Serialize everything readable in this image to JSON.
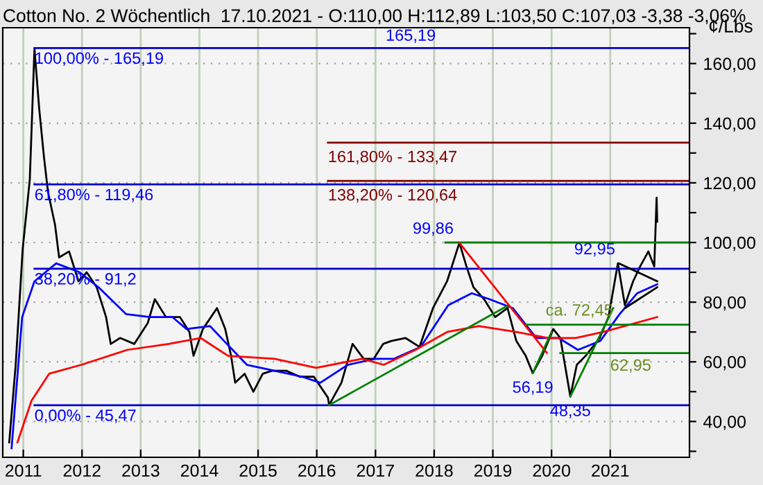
{
  "chart_data": {
    "type": "line",
    "title": "Cotton No. 2 Wöchentlich  17.10.2021 - O:110,00 H:112,89 L:103,50 C:107,03 -3,38 -3,06%",
    "ylabel": "¢/Lbs",
    "xlim": [
      2010.65,
      2022.35
    ],
    "ylim": [
      28,
      172
    ],
    "xticks": [
      2011,
      2012,
      2013,
      2014,
      2015,
      2016,
      2017,
      2018,
      2019,
      2020,
      2021
    ],
    "yticks": [
      {
        "value": 30,
        "label": null
      },
      {
        "value": 40,
        "label": "40,00"
      },
      {
        "value": 50,
        "label": null
      },
      {
        "value": 60,
        "label": "60,00"
      },
      {
        "value": 70,
        "label": null
      },
      {
        "value": 80,
        "label": "80,00"
      },
      {
        "value": 90,
        "label": null
      },
      {
        "value": 100,
        "label": "100,00"
      },
      {
        "value": 110,
        "label": null
      },
      {
        "value": 120,
        "label": "120,00"
      },
      {
        "value": 130,
        "label": null
      },
      {
        "value": 140,
        "label": "140,00"
      },
      {
        "value": 150,
        "label": null
      },
      {
        "value": 160,
        "label": "160,00"
      },
      {
        "value": 170,
        "label": null
      }
    ],
    "grid": true,
    "series": [
      {
        "color": "#000000",
        "x": [
          2010.76,
          2010.87,
          2010.99,
          2011.11,
          2011.19,
          2011.27,
          2011.35,
          2011.42,
          2011.54,
          2011.61,
          2011.78,
          2011.94,
          2012.08,
          2012.25,
          2012.41,
          2012.49,
          2012.65,
          2012.89,
          2013.12,
          2013.24,
          2013.43,
          2013.67,
          2013.83,
          2013.9,
          2014.06,
          2014.3,
          2014.44,
          2014.54,
          2014.61,
          2014.77,
          2014.92,
          2015.08,
          2015.24,
          2015.48,
          2015.71,
          2015.95,
          2016.19,
          2016.21,
          2016.42,
          2016.61,
          2016.8,
          2016.97,
          2017.13,
          2017.27,
          2017.51,
          2017.75,
          2017.98,
          2018.22,
          2018.43,
          2018.55,
          2018.67,
          2018.85,
          2019.04,
          2019.25,
          2019.4,
          2019.56,
          2019.68,
          2019.84,
          2020.03,
          2020.15,
          2020.32,
          2020.43,
          2020.58,
          2020.82,
          2020.97,
          2021.13,
          2021.25,
          2021.39,
          2021.51,
          2021.65,
          2021.75,
          2021.79,
          2021.8
        ],
        "values": [
          33,
          59,
          98,
          121,
          165,
          145,
          129,
          117,
          106,
          95,
          97,
          87,
          90,
          85,
          75,
          66,
          68,
          66,
          73,
          81,
          75,
          75,
          70,
          62,
          71,
          78,
          71,
          62,
          53,
          56,
          50,
          56,
          57,
          57,
          55,
          55,
          48,
          45.5,
          53,
          66,
          61,
          61,
          66,
          67,
          68,
          65,
          78,
          87,
          99.9,
          92,
          85,
          81,
          75,
          78,
          67,
          62,
          56.2,
          62,
          71,
          68,
          48.4,
          59,
          62,
          68,
          75,
          93,
          79,
          87,
          92,
          97,
          92,
          115,
          107
        ]
      },
      {
        "color": "#0000ff",
        "x": [
          2010.8,
          2010.98,
          2011.19,
          2011.56,
          2011.96,
          2012.28,
          2012.75,
          2013.16,
          2013.54,
          2013.78,
          2014.18,
          2014.42,
          2014.81,
          2015.28,
          2015.75,
          2016.06,
          2016.53,
          2017.0,
          2017.31,
          2017.77,
          2018.24,
          2018.64,
          2018.94,
          2019.34,
          2019.74,
          2020.12,
          2020.45,
          2020.83,
          2021.16,
          2021.46,
          2021.8
        ],
        "values": [
          31,
          75,
          87,
          93,
          90,
          85,
          76,
          75,
          75,
          71,
          72,
          67,
          59,
          57,
          55,
          53,
          59,
          61,
          61,
          65,
          79,
          83,
          81,
          78,
          68,
          68,
          64,
          67,
          76,
          83,
          86
        ]
      },
      {
        "color": "#ff0000",
        "x": [
          2010.9,
          2011.14,
          2011.44,
          2011.99,
          2012.77,
          2013.48,
          2014.02,
          2014.49,
          2015.28,
          2015.99,
          2016.77,
          2017.14,
          2017.68,
          2018.22,
          2018.76,
          2019.4,
          2019.94,
          2020.41,
          2020.88,
          2021.8
        ],
        "values": [
          33,
          47,
          56,
          59,
          64,
          66,
          68,
          62,
          61,
          58,
          61,
          59,
          64,
          70,
          72,
          70,
          68,
          68,
          70,
          75
        ]
      },
      {
        "color": "#0000cc",
        "x": [
          2011.19,
          2022.35
        ],
        "values": [
          165.19,
          165.19
        ]
      },
      {
        "color": "#0000cc",
        "x": [
          2011.19,
          2022.35
        ],
        "values": [
          119.46,
          119.46
        ]
      },
      {
        "color": "#0000cc",
        "x": [
          2011.19,
          2022.35
        ],
        "values": [
          91.2,
          91.2
        ]
      },
      {
        "color": "#0000cc",
        "x": [
          2011.19,
          2022.35
        ],
        "values": [
          45.47,
          45.47
        ]
      },
      {
        "color": "#800000",
        "x": [
          2016.19,
          2022.35
        ],
        "values": [
          133.47,
          133.47
        ]
      },
      {
        "color": "#800000",
        "x": [
          2016.19,
          2022.35
        ],
        "values": [
          120.64,
          120.64
        ]
      },
      {
        "color": "#008000",
        "x": [
          2018.19,
          2022.35
        ],
        "values": [
          100,
          100
        ]
      },
      {
        "color": "#008000",
        "x": [
          2019.56,
          2022.35
        ],
        "values": [
          72.45,
          72.45
        ]
      },
      {
        "color": "#008000",
        "x": [
          2020.15,
          2022.35
        ],
        "values": [
          62.95,
          62.95
        ]
      },
      {
        "color": "#008000",
        "x": [
          2016.21,
          2019.27
        ],
        "values": [
          45.5,
          79
        ]
      },
      {
        "color": "#ff0000",
        "x": [
          2018.43,
          2019.92
        ],
        "values": [
          99.86,
          63
        ]
      },
      {
        "color": "#008000",
        "x": [
          2019.68,
          2020.0
        ],
        "values": [
          56.19,
          70
        ]
      },
      {
        "color": "#008000",
        "x": [
          2020.32,
          2021.05
        ],
        "values": [
          48.35,
          78
        ]
      },
      {
        "color": "#000000",
        "x": [
          2021.15,
          2021.8
        ],
        "values": [
          92.95,
          87
        ]
      },
      {
        "color": "#000000",
        "x": [
          2021.25,
          2021.8
        ],
        "values": [
          78,
          85
        ]
      }
    ],
    "annotations": [
      {
        "text": "165,19",
        "x": 2017.6,
        "y": 165.19
      },
      {
        "text": "100,00% - 165,19",
        "x": 2011.19,
        "y": 165.19
      },
      {
        "text": "61,80% - 119,46",
        "x": 2011.19,
        "y": 119.46
      },
      {
        "text": "38,20% - 91,2",
        "x": 2011.19,
        "y": 91.2
      },
      {
        "text": "0,00% - 45,47",
        "x": 2011.19,
        "y": 45.47
      },
      {
        "text": "161,80% - 133,47",
        "x": 2016.19,
        "y": 133.47
      },
      {
        "text": "138,20% - 120,64",
        "x": 2016.19,
        "y": 120.64
      },
      {
        "text": "99,86",
        "x": 2018.43,
        "y": 99.86
      },
      {
        "text": "92,95",
        "x": 2021.15,
        "y": 92.95
      },
      {
        "text": "ca. 72,45",
        "x": 2019.9,
        "y": 72.45
      },
      {
        "text": "56,19",
        "x": 2019.68,
        "y": 56.19
      },
      {
        "text": "48,35",
        "x": 2020.32,
        "y": 48.35
      },
      {
        "text": "62,95",
        "x": 2021.0,
        "y": 62.95
      }
    ]
  }
}
